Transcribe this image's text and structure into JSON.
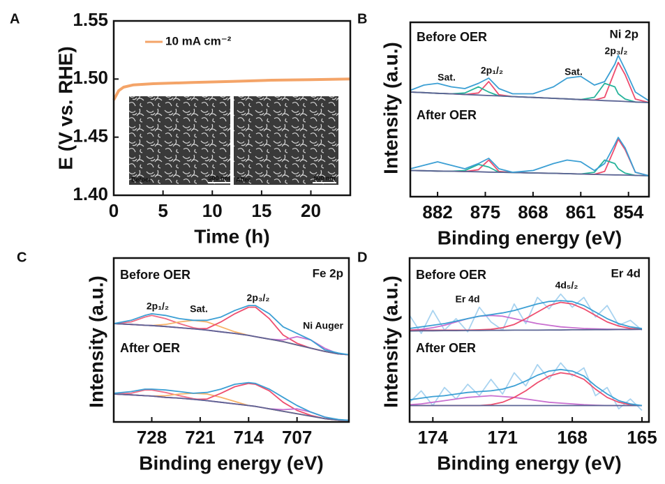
{
  "chart_data": [
    {
      "type": "line",
      "label": "A",
      "xlabel": "Time (h)",
      "ylabel": "E (V vs. RHE)",
      "x": [
        0,
        0.5,
        1,
        2,
        4,
        8,
        12,
        16,
        20,
        24
      ],
      "series": [
        {
          "name": "10 mA cm⁻²",
          "color": "#f4a468",
          "values": [
            1.482,
            1.49,
            1.493,
            1.495,
            1.496,
            1.497,
            1.498,
            1.499,
            1.4995,
            1.5
          ]
        }
      ],
      "xlim": [
        0,
        24
      ],
      "ylim": [
        1.4,
        1.55
      ],
      "xticks": [
        0,
        5,
        10,
        15,
        20
      ],
      "yticks": [
        {
          "value": 1.4,
          "label": "1.40"
        },
        1.45,
        {
          "value": 1.5,
          "label": "1.50"
        },
        1.55
      ],
      "annotations": [
        {
          "text": "Befoer"
        },
        {
          "text": "500 nm"
        },
        {
          "text": "After"
        },
        {
          "text": "500 nm"
        }
      ]
    },
    {
      "type": "line",
      "label": "B",
      "xlabel": "Binding energy (eV)",
      "ylabel": "Intensity (a.u.)",
      "x": [
        886,
        884,
        882,
        880,
        878,
        876,
        874.5,
        873,
        871,
        868,
        865,
        863,
        861,
        859,
        857.5,
        856,
        855.5,
        854.5,
        853,
        851
      ],
      "series": [
        {
          "color": "#ee4d6e",
          "values": [
            6.0,
            5.97,
            5.93,
            5.9,
            5.86,
            5.95,
            6.6,
            5.85,
            5.74,
            5.69,
            5.64,
            5.61,
            5.57,
            5.54,
            5.7,
            7.2,
            7.7,
            7.0,
            5.6,
            5.4
          ]
        },
        {
          "color": "#27b39b",
          "values": [
            6.0,
            5.97,
            5.93,
            5.9,
            5.95,
            6.3,
            6.0,
            5.78,
            5.74,
            5.69,
            5.64,
            5.61,
            5.57,
            5.7,
            6.5,
            6.3,
            5.9,
            5.6,
            5.43,
            5.4
          ]
        },
        {
          "color": "#5b6494",
          "values": [
            6.0,
            5.97,
            5.93,
            5.9,
            5.86,
            5.83,
            5.8,
            5.78,
            5.74,
            5.69,
            5.64,
            5.61,
            5.57,
            5.54,
            5.51,
            5.49,
            5.48,
            5.46,
            5.43,
            5.4
          ]
        },
        {
          "color": "#3b9fd4",
          "values": [
            6.1,
            6.4,
            6.5,
            6.3,
            6.2,
            6.5,
            6.8,
            6.2,
            5.9,
            5.9,
            6.3,
            6.8,
            6.9,
            6.4,
            6.6,
            7.6,
            8.1,
            7.3,
            6.0,
            5.5
          ]
        },
        {
          "color": "#ee4d6e",
          "values": [
            1.5,
            1.49,
            1.47,
            1.46,
            1.44,
            1.55,
            2.1,
            1.45,
            1.39,
            1.36,
            1.34,
            1.32,
            1.3,
            1.28,
            1.45,
            2.8,
            3.3,
            2.7,
            1.4,
            1.2
          ]
        },
        {
          "color": "#27b39b",
          "values": [
            1.5,
            1.49,
            1.47,
            1.46,
            1.5,
            1.85,
            1.7,
            1.4,
            1.39,
            1.36,
            1.34,
            1.32,
            1.3,
            1.4,
            2.1,
            1.9,
            1.6,
            1.35,
            1.22,
            1.2
          ]
        },
        {
          "color": "#5b6494",
          "values": [
            1.5,
            1.49,
            1.47,
            1.46,
            1.44,
            1.43,
            1.41,
            1.4,
            1.39,
            1.36,
            1.34,
            1.32,
            1.3,
            1.28,
            1.26,
            1.25,
            1.25,
            1.24,
            1.22,
            1.2
          ]
        },
        {
          "color": "#3b9fd4",
          "values": [
            1.6,
            1.8,
            2.0,
            1.8,
            1.6,
            1.9,
            2.2,
            1.6,
            1.4,
            1.5,
            1.9,
            2.1,
            2.0,
            1.5,
            1.9,
            3.0,
            3.4,
            2.8,
            1.4,
            1.2
          ]
        }
      ],
      "xlim": [
        886,
        851
      ],
      "ylim": [
        0,
        10
      ],
      "xticks": [
        882,
        875,
        868,
        861,
        854
      ],
      "annotations": [
        {
          "text": "Before OER"
        },
        {
          "text": "After OER"
        },
        {
          "text": "Ni 2p"
        },
        {
          "text": "Sat.",
          "color": "#f5a55a"
        },
        {
          "text": "2p₁/₂"
        },
        {
          "text": "Sat.",
          "color": "#f5a55a"
        },
        {
          "text": "2p₃/₂"
        }
      ]
    },
    {
      "type": "line",
      "label": "C",
      "xlabel": "Binding energy (eV)",
      "ylabel": "Intensity (a.u.)",
      "x": [
        733.5,
        731,
        729,
        728,
        726,
        724,
        722,
        720,
        718,
        716,
        714,
        713,
        711,
        709,
        707,
        705,
        703,
        701,
        699.5
      ],
      "series": [
        {
          "color": "#ee6b85",
          "values": [
            6.0,
            6.1,
            6.4,
            6.5,
            6.3,
            6.0,
            5.75,
            5.6,
            5.5,
            5.4,
            5.28,
            5.2,
            5.05,
            4.9,
            4.7,
            4.5,
            4.3,
            4.15,
            4.1
          ]
        },
        {
          "color": "#f7b267",
          "values": [
            6.0,
            5.95,
            5.9,
            5.88,
            5.95,
            6.1,
            6.2,
            6.1,
            5.8,
            5.5,
            5.28,
            5.2,
            5.05,
            4.9,
            4.7,
            4.5,
            4.3,
            4.15,
            4.1
          ]
        },
        {
          "color": "#ee4d6e",
          "values": [
            6.0,
            5.95,
            5.9,
            5.88,
            5.82,
            5.75,
            5.68,
            5.7,
            6.1,
            6.6,
            7.0,
            7.0,
            6.3,
            5.3,
            4.8,
            4.5,
            4.3,
            4.15,
            4.1
          ]
        },
        {
          "color": "#c96fd0",
          "values": [
            6.0,
            5.95,
            5.9,
            5.88,
            5.82,
            5.75,
            5.68,
            5.6,
            5.5,
            5.4,
            5.28,
            5.2,
            5.05,
            5.0,
            5.2,
            5.0,
            4.5,
            4.15,
            4.1
          ]
        },
        {
          "color": "#5b6494",
          "values": [
            6.0,
            5.95,
            5.9,
            5.88,
            5.82,
            5.75,
            5.68,
            5.6,
            5.5,
            5.4,
            5.28,
            5.2,
            5.05,
            4.9,
            4.7,
            4.5,
            4.3,
            4.15,
            4.1
          ]
        },
        {
          "color": "#3b9fd4",
          "values": [
            6.0,
            6.2,
            6.5,
            6.6,
            6.5,
            6.3,
            6.2,
            6.2,
            6.4,
            6.8,
            7.1,
            7.1,
            6.6,
            5.8,
            5.4,
            5.0,
            4.4,
            4.2,
            4.1
          ]
        },
        {
          "color": "#ee6b85",
          "values": [
            1.7,
            1.75,
            1.95,
            1.95,
            1.8,
            1.6,
            1.42,
            1.3,
            1.2,
            1.1,
            1.0,
            0.95,
            0.8,
            0.65,
            0.5,
            0.35,
            0.2,
            0.12,
            0.1
          ]
        },
        {
          "color": "#f7b267",
          "values": [
            1.7,
            1.65,
            1.6,
            1.58,
            1.6,
            1.7,
            1.75,
            1.7,
            1.5,
            1.25,
            1.0,
            0.95,
            0.8,
            0.65,
            0.5,
            0.35,
            0.2,
            0.12,
            0.1
          ]
        },
        {
          "color": "#ee4d6e",
          "values": [
            1.7,
            1.65,
            1.6,
            1.58,
            1.5,
            1.45,
            1.38,
            1.4,
            1.75,
            2.15,
            2.35,
            2.3,
            1.9,
            1.2,
            0.7,
            0.4,
            0.2,
            0.12,
            0.1
          ]
        },
        {
          "color": "#c96fd0",
          "values": [
            1.7,
            1.65,
            1.6,
            1.58,
            1.5,
            1.45,
            1.38,
            1.3,
            1.2,
            1.1,
            1.0,
            0.95,
            0.8,
            0.75,
            0.8,
            0.6,
            0.3,
            0.12,
            0.1
          ]
        },
        {
          "color": "#5b6494",
          "values": [
            1.7,
            1.65,
            1.6,
            1.58,
            1.5,
            1.45,
            1.38,
            1.3,
            1.2,
            1.1,
            1.0,
            0.95,
            0.8,
            0.65,
            0.5,
            0.35,
            0.2,
            0.12,
            0.1
          ]
        },
        {
          "color": "#3b9fd4",
          "values": [
            1.75,
            1.85,
            2.0,
            2.0,
            1.95,
            1.85,
            1.75,
            1.8,
            2.0,
            2.3,
            2.4,
            2.35,
            2.0,
            1.5,
            1.0,
            0.6,
            0.3,
            0.15,
            0.1
          ]
        }
      ],
      "xlim": [
        733.5,
        699.5
      ],
      "ylim": [
        0,
        10
      ],
      "xticks": [
        728,
        721,
        714,
        707
      ],
      "annotations": [
        {
          "text": "Before OER"
        },
        {
          "text": "After OER"
        },
        {
          "text": "Fe 2p"
        },
        {
          "text": "2p₁/₂"
        },
        {
          "text": "Sat.",
          "color": "#f5a55a"
        },
        {
          "text": "2p₃/₂"
        },
        {
          "text": "Ni Auger",
          "color": "#c96fd0"
        }
      ]
    },
    {
      "type": "line",
      "label": "D",
      "xlabel": "Binding energy (eV)",
      "ylabel": "Intensity (a.u.)",
      "x": [
        175,
        174.5,
        174,
        173.5,
        173,
        172.5,
        172,
        171.5,
        171,
        170.5,
        170,
        169.5,
        169,
        168.5,
        168,
        167.5,
        167,
        166.5,
        166,
        165.5,
        165
      ],
      "series": [
        {
          "color": "#a8d3f0",
          "values": [
            6.5,
            5.4,
            6.8,
            5.6,
            6.3,
            5.5,
            7.0,
            6.1,
            5.6,
            7.2,
            6.0,
            7.6,
            6.9,
            7.8,
            7.0,
            7.6,
            6.4,
            7.1,
            5.9,
            6.2,
            5.6
          ]
        },
        {
          "color": "#c96fd0",
          "values": [
            5.6,
            5.65,
            5.75,
            5.9,
            6.1,
            6.3,
            6.45,
            6.5,
            6.45,
            6.3,
            6.15,
            6.0,
            5.9,
            5.8,
            5.75,
            5.7,
            5.68,
            5.66,
            5.65,
            5.65,
            5.65
          ]
        },
        {
          "color": "#ee4d6e",
          "values": [
            5.6,
            5.6,
            5.6,
            5.6,
            5.6,
            5.6,
            5.62,
            5.65,
            5.75,
            5.95,
            6.3,
            6.7,
            7.1,
            7.3,
            7.2,
            6.9,
            6.5,
            6.1,
            5.85,
            5.7,
            5.65
          ]
        },
        {
          "color": "#5b6494",
          "values": [
            5.55,
            5.56,
            5.56,
            5.57,
            5.57,
            5.58,
            5.58,
            5.59,
            5.59,
            5.6,
            5.6,
            5.6,
            5.61,
            5.61,
            5.62,
            5.62,
            5.63,
            5.63,
            5.64,
            5.64,
            5.65
          ]
        },
        {
          "color": "#3b9fd4",
          "values": [
            5.7,
            5.8,
            5.9,
            6.0,
            6.15,
            6.3,
            6.45,
            6.55,
            6.65,
            6.8,
            7.0,
            7.2,
            7.35,
            7.4,
            7.35,
            7.1,
            6.7,
            6.3,
            6.0,
            5.8,
            5.7
          ]
        },
        {
          "color": "#a8d3f0",
          "values": [
            1.2,
            1.9,
            1.0,
            2.1,
            1.4,
            2.3,
            1.6,
            2.6,
            1.7,
            3.0,
            2.2,
            3.5,
            2.6,
            3.6,
            2.8,
            3.3,
            1.6,
            2.1,
            0.8,
            1.4,
            0.7
          ]
        },
        {
          "color": "#c96fd0",
          "values": [
            1.05,
            1.1,
            1.2,
            1.3,
            1.4,
            1.5,
            1.55,
            1.6,
            1.55,
            1.5,
            1.4,
            1.3,
            1.2,
            1.15,
            1.1,
            1.05,
            1.02,
            1.0,
            1.0,
            1.0,
            1.0
          ]
        },
        {
          "color": "#ee4d6e",
          "values": [
            1.0,
            1.0,
            1.0,
            1.0,
            1.0,
            1.0,
            1.0,
            1.05,
            1.2,
            1.5,
            1.9,
            2.4,
            2.8,
            3.0,
            2.9,
            2.6,
            2.0,
            1.5,
            1.2,
            1.05,
            1.0
          ]
        },
        {
          "color": "#5b6494",
          "values": [
            1.0,
            1.0,
            1.0,
            1.0,
            1.0,
            1.0,
            1.0,
            1.0,
            1.0,
            1.0,
            1.0,
            1.0,
            1.0,
            1.0,
            1.0,
            1.0,
            1.0,
            1.0,
            1.0,
            1.0,
            1.0
          ]
        },
        {
          "color": "#3b9fd4",
          "values": [
            1.35,
            1.45,
            1.55,
            1.6,
            1.7,
            1.8,
            1.85,
            1.9,
            2.0,
            2.2,
            2.5,
            2.85,
            3.1,
            3.2,
            3.1,
            2.8,
            2.2,
            1.7,
            1.3,
            1.1,
            1.0
          ]
        }
      ],
      "xlim": [
        175,
        164.7
      ],
      "ylim": [
        0,
        10
      ],
      "xticks": [
        174,
        171,
        168,
        165
      ],
      "annotations": [
        {
          "text": "Before OER"
        },
        {
          "text": "After OER"
        },
        {
          "text": "Er 4d"
        },
        {
          "text": "Er 4d",
          "color": "#c96fd0"
        },
        {
          "text": "4d₅/₂"
        }
      ]
    }
  ]
}
